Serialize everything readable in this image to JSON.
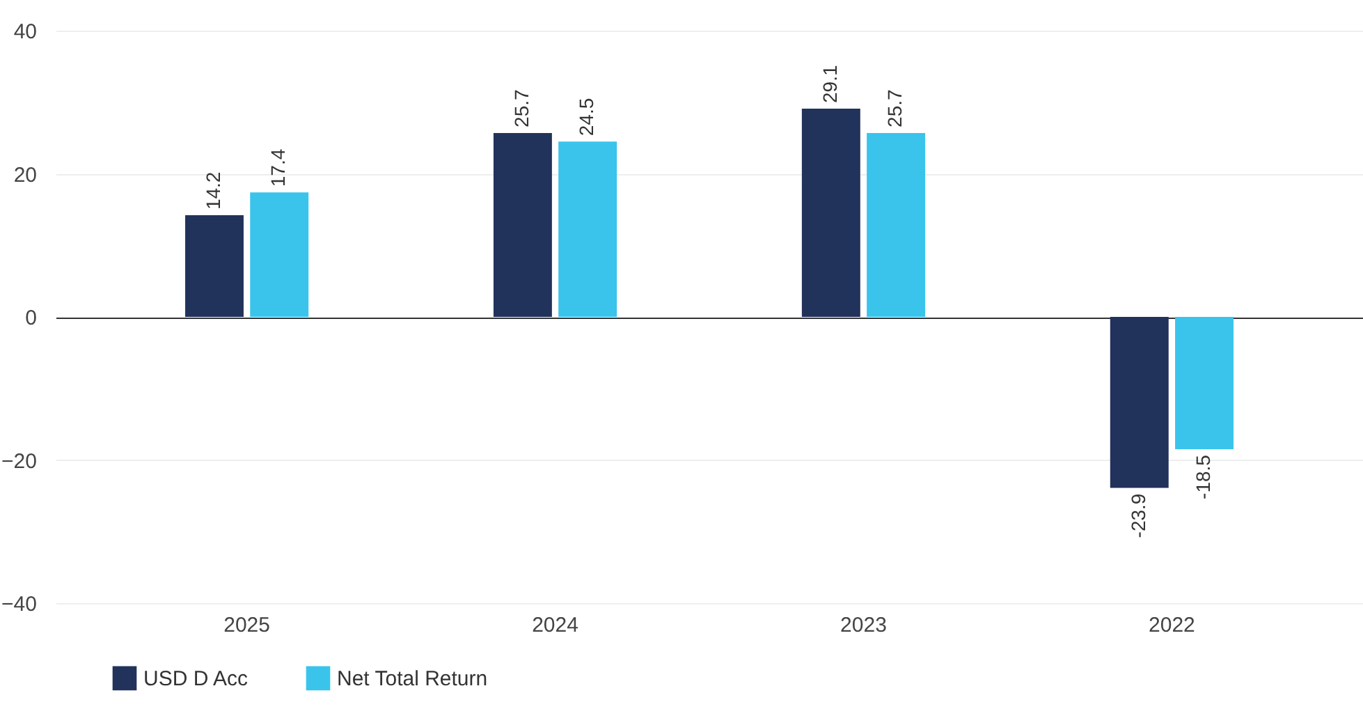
{
  "chart_data": {
    "type": "bar",
    "categories": [
      "2025",
      "2024",
      "2023",
      "2022"
    ],
    "series": [
      {
        "name": "USD D Acc",
        "color": "#21325b",
        "values": [
          14.2,
          25.7,
          29.1,
          -23.9
        ]
      },
      {
        "name": "Net Total Return",
        "color": "#3ac4ec",
        "values": [
          17.4,
          24.5,
          25.7,
          -18.5
        ]
      }
    ],
    "ylim": [
      -40,
      40
    ],
    "yticks": [
      -40,
      -20,
      0,
      20,
      40
    ],
    "grid": "y",
    "legend": "bottom",
    "data_labels": true
  }
}
